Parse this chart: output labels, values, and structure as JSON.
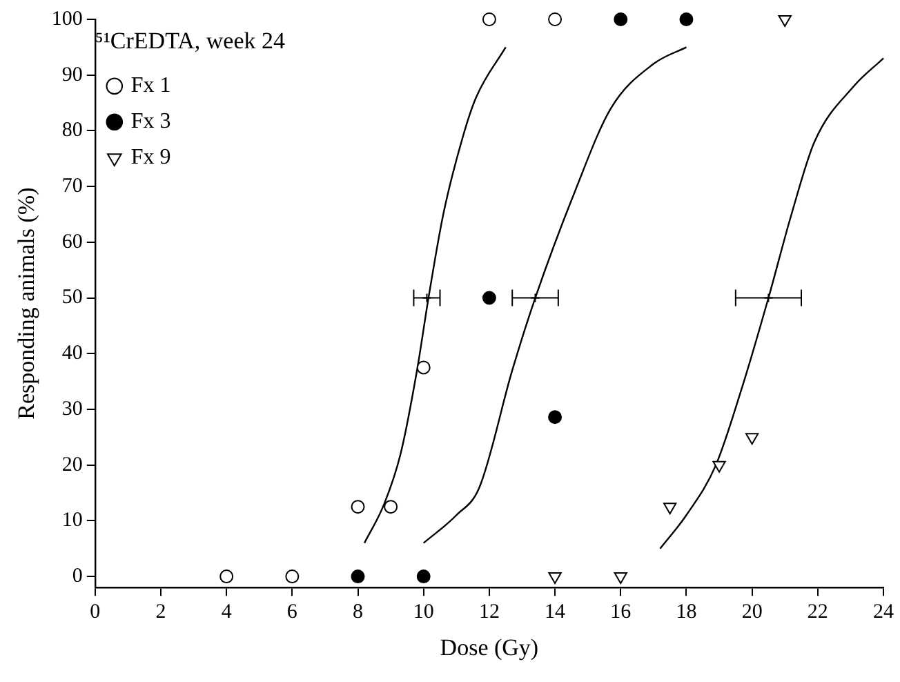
{
  "chart_data": {
    "type": "scatter",
    "xlabel": "Dose (Gy)",
    "ylabel": "Responding animals (%)",
    "legend_title": "⁵¹CrEDTA, week 24",
    "legend": "top left",
    "grid": false,
    "xlim": [
      0,
      24
    ],
    "xticks": [
      0,
      2,
      4,
      6,
      8,
      10,
      12,
      14,
      16,
      18,
      20,
      22,
      24
    ],
    "ylim": [
      -2,
      100
    ],
    "yticks": [
      0,
      10,
      20,
      30,
      40,
      50,
      60,
      70,
      80,
      90,
      100
    ],
    "series": [
      {
        "name": "Fx 1",
        "marker": "circle",
        "color": "#ffffff",
        "x": [
          4,
          6,
          8,
          9,
          10,
          12,
          14
        ],
        "values": [
          0,
          0,
          12.5,
          12.5,
          37.5,
          100,
          100
        ]
      },
      {
        "name": "Fx 3",
        "marker": "circle",
        "color": "#000000",
        "x": [
          8,
          10,
          12,
          14,
          16,
          18
        ],
        "values": [
          0,
          0,
          50,
          28.6,
          100,
          100
        ]
      },
      {
        "name": "Fx 9",
        "marker": "triangle",
        "color": "#ffffff",
        "x": [
          14,
          16,
          17.5,
          19,
          20,
          21
        ],
        "values": [
          0,
          0,
          12.5,
          20,
          25,
          100
        ]
      },
      {
        "type": "line",
        "marker": "none",
        "color": "#000000",
        "x": [
          8.2,
          8.8,
          9.3,
          9.8,
          10.15,
          10.6,
          11.2,
          11.6,
          12.5
        ],
        "values": [
          6,
          13,
          22,
          37,
          50,
          65,
          79,
          86,
          95
        ]
      },
      {
        "type": "line",
        "marker": "none",
        "color": "#000000",
        "x": [
          10,
          11,
          11.7,
          12.7,
          13.4,
          14.6,
          15.7,
          17,
          18
        ],
        "values": [
          6,
          11,
          16,
          37,
          50,
          69,
          84,
          92,
          95
        ]
      },
      {
        "type": "line",
        "marker": "none",
        "color": "#000000",
        "x": [
          17.2,
          18,
          18.9,
          19.7,
          20.5,
          21.2,
          21.9,
          23.1,
          24
        ],
        "values": [
          5,
          11,
          20,
          34,
          50,
          65,
          78,
          88,
          93
        ]
      },
      {
        "marker": "cross",
        "color": "#000000",
        "x": [
          10.1,
          13.4,
          20.5
        ],
        "values": [
          50,
          50,
          50
        ],
        "xerrors": [
          [
            9.7,
            10.5
          ],
          [
            12.7,
            14.1
          ],
          [
            19.5,
            21.5
          ]
        ]
      }
    ]
  }
}
